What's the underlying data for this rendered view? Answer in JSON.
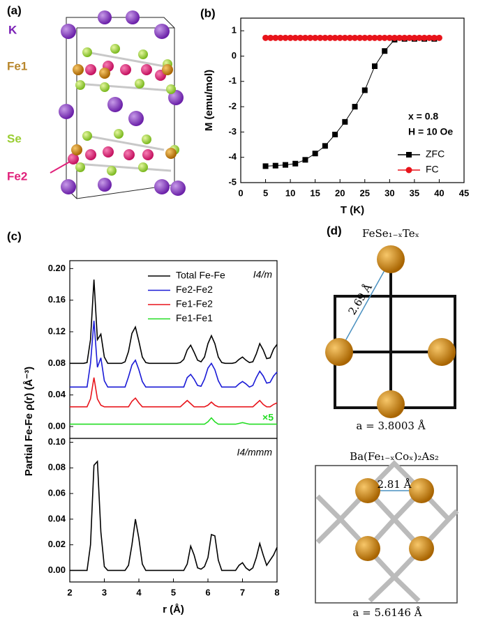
{
  "panel_a": {
    "label": "(a)",
    "atoms": [
      "K",
      "Fe1",
      "Se",
      "Fe2"
    ]
  },
  "panel_d": {
    "label": "(d)",
    "top": {
      "formula": "FeSe₁₋ₓTeₓ",
      "distance": "2.69 Å",
      "lattice": "a = 3.8003 Å"
    },
    "bottom": {
      "formula": "Ba(Fe₁₋ₓCoₓ)₂As₂",
      "distance": "2.81 Å",
      "lattice": "a = 5.6146 Å"
    }
  },
  "chart_data": [
    {
      "type": "line",
      "panel": "(b)",
      "xlabel": "T (K)",
      "ylabel": "M (emu/mol)",
      "xlim": [
        0,
        45
      ],
      "xticks": [
        0,
        5,
        10,
        15,
        20,
        25,
        30,
        35,
        40,
        45
      ],
      "ylim": [
        -5,
        1.5
      ],
      "yticks": [
        -5,
        -4,
        -3,
        -2,
        -1,
        0,
        1
      ],
      "annotations": [
        "x = 0.8",
        "H = 10 Oe"
      ],
      "legend": "lower right",
      "series": [
        {
          "name": "ZFC",
          "color": "#000000",
          "marker": "square",
          "x": [
            5,
            7,
            9,
            11,
            13,
            15,
            17,
            19,
            21,
            23,
            25,
            27,
            29,
            31,
            33,
            35,
            37,
            39
          ],
          "values": [
            -4.35,
            -4.33,
            -4.3,
            -4.25,
            -4.1,
            -3.85,
            -3.55,
            -3.1,
            -2.6,
            -2.0,
            -1.35,
            -0.4,
            0.2,
            0.65,
            0.68,
            0.68,
            0.68,
            0.68
          ]
        },
        {
          "name": "FC",
          "color": "#e8141b",
          "marker": "circle",
          "x": [
            5,
            6,
            7,
            8,
            9,
            10,
            11,
            12,
            13,
            14,
            15,
            16,
            17,
            18,
            19,
            20,
            21,
            22,
            23,
            24,
            25,
            26,
            27,
            28,
            29,
            30,
            31,
            32,
            33,
            34,
            35,
            36,
            37,
            38,
            39,
            40
          ],
          "values": [
            0.72,
            0.72,
            0.72,
            0.72,
            0.72,
            0.72,
            0.72,
            0.72,
            0.72,
            0.72,
            0.72,
            0.72,
            0.72,
            0.72,
            0.72,
            0.72,
            0.72,
            0.72,
            0.72,
            0.72,
            0.72,
            0.72,
            0.72,
            0.72,
            0.72,
            0.72,
            0.72,
            0.72,
            0.72,
            0.72,
            0.72,
            0.72,
            0.72,
            0.72,
            0.72,
            0.72
          ]
        }
      ]
    },
    {
      "type": "line",
      "panel": "(c)",
      "ylabel": "Partial Fe-Fe ρ(r) (Å⁻³)",
      "xlim": [
        2,
        8
      ],
      "ylim": [
        -0.015,
        0.21
      ],
      "yticks": [
        {
          "value": 0,
          "label": "0.00"
        },
        0.04,
        0.08,
        0.12,
        0.16,
        {
          "value": 0.2,
          "label": "0.20"
        }
      ],
      "annotations": [
        "I4/m",
        "×5"
      ],
      "legend": "upper right",
      "x": [
        2.0,
        2.1,
        2.2,
        2.3,
        2.4,
        2.5,
        2.6,
        2.7,
        2.8,
        2.9,
        3.0,
        3.1,
        3.2,
        3.3,
        3.4,
        3.5,
        3.6,
        3.7,
        3.8,
        3.9,
        4.0,
        4.1,
        4.2,
        4.3,
        4.4,
        4.5,
        4.6,
        4.7,
        4.8,
        4.9,
        5.0,
        5.1,
        5.2,
        5.3,
        5.4,
        5.5,
        5.6,
        5.7,
        5.8,
        5.9,
        6.0,
        6.1,
        6.2,
        6.3,
        6.4,
        6.5,
        6.6,
        6.7,
        6.8,
        6.9,
        7.0,
        7.1,
        7.2,
        7.3,
        7.4,
        7.5,
        7.6,
        7.7,
        7.8,
        7.9,
        8.0
      ],
      "series": [
        {
          "name": "Total Fe-Fe",
          "color": "#000000",
          "values": [
            0.08,
            0.08,
            0.08,
            0.08,
            0.08,
            0.081,
            0.11,
            0.186,
            0.11,
            0.117,
            0.088,
            0.08,
            0.08,
            0.08,
            0.08,
            0.08,
            0.082,
            0.095,
            0.118,
            0.126,
            0.108,
            0.088,
            0.081,
            0.08,
            0.08,
            0.08,
            0.08,
            0.08,
            0.08,
            0.08,
            0.08,
            0.08,
            0.081,
            0.085,
            0.097,
            0.103,
            0.094,
            0.084,
            0.082,
            0.088,
            0.105,
            0.115,
            0.105,
            0.088,
            0.081,
            0.08,
            0.08,
            0.08,
            0.081,
            0.085,
            0.088,
            0.084,
            0.081,
            0.082,
            0.092,
            0.105,
            0.097,
            0.086,
            0.087,
            0.098,
            0.104
          ]
        },
        {
          "name": "Fe2-Fe2",
          "color": "#1a1ad6",
          "values": [
            0.05,
            0.05,
            0.05,
            0.05,
            0.05,
            0.05,
            0.08,
            0.134,
            0.075,
            0.087,
            0.058,
            0.05,
            0.05,
            0.05,
            0.05,
            0.05,
            0.05,
            0.063,
            0.078,
            0.084,
            0.072,
            0.057,
            0.05,
            0.05,
            0.05,
            0.05,
            0.05,
            0.05,
            0.05,
            0.05,
            0.05,
            0.05,
            0.05,
            0.05,
            0.062,
            0.066,
            0.06,
            0.052,
            0.051,
            0.06,
            0.074,
            0.08,
            0.072,
            0.058,
            0.05,
            0.05,
            0.05,
            0.05,
            0.05,
            0.054,
            0.057,
            0.054,
            0.05,
            0.052,
            0.062,
            0.07,
            0.064,
            0.055,
            0.056,
            0.064,
            0.069
          ]
        },
        {
          "name": "Fe1-Fe2",
          "color": "#e8141b",
          "values": [
            0.025,
            0.025,
            0.025,
            0.025,
            0.025,
            0.025,
            0.035,
            0.062,
            0.035,
            0.027,
            0.025,
            0.025,
            0.025,
            0.025,
            0.025,
            0.025,
            0.025,
            0.025,
            0.032,
            0.036,
            0.03,
            0.025,
            0.025,
            0.025,
            0.025,
            0.025,
            0.025,
            0.025,
            0.025,
            0.025,
            0.025,
            0.025,
            0.025,
            0.029,
            0.033,
            0.029,
            0.025,
            0.025,
            0.025,
            0.025,
            0.027,
            0.031,
            0.027,
            0.025,
            0.025,
            0.025,
            0.025,
            0.025,
            0.025,
            0.025,
            0.025,
            0.025,
            0.025,
            0.025,
            0.029,
            0.033,
            0.028,
            0.025,
            0.025,
            0.028,
            0.03
          ]
        },
        {
          "name": "Fe1-Fe1",
          "color": "#22dd22",
          "values": [
            0.003,
            0.003,
            0.003,
            0.003,
            0.003,
            0.003,
            0.003,
            0.003,
            0.003,
            0.003,
            0.003,
            0.003,
            0.003,
            0.003,
            0.003,
            0.003,
            0.003,
            0.003,
            0.003,
            0.003,
            0.003,
            0.003,
            0.003,
            0.003,
            0.003,
            0.003,
            0.003,
            0.003,
            0.003,
            0.003,
            0.003,
            0.003,
            0.003,
            0.003,
            0.003,
            0.003,
            0.003,
            0.003,
            0.003,
            0.003,
            0.006,
            0.011,
            0.006,
            0.003,
            0.003,
            0.003,
            0.003,
            0.003,
            0.003,
            0.004,
            0.005,
            0.004,
            0.003,
            0.003,
            0.003,
            0.003,
            0.003,
            0.003,
            0.003,
            0.003,
            0.003
          ]
        }
      ]
    },
    {
      "type": "line",
      "xlabel": "r (Å)",
      "xlim": [
        2,
        8
      ],
      "xticks": [
        2,
        3,
        4,
        5,
        6,
        7,
        8
      ],
      "ylim": [
        -0.009,
        0.103
      ],
      "yticks": [
        {
          "value": 0,
          "label": "0.00"
        },
        0.02,
        0.04,
        0.06,
        0.08,
        {
          "value": 0.1,
          "label": "0.10"
        }
      ],
      "annotations": [
        "I4/mmm"
      ],
      "x": [
        2.0,
        2.1,
        2.2,
        2.3,
        2.4,
        2.5,
        2.6,
        2.7,
        2.8,
        2.9,
        3.0,
        3.1,
        3.2,
        3.3,
        3.4,
        3.5,
        3.6,
        3.7,
        3.8,
        3.9,
        4.0,
        4.1,
        4.2,
        4.3,
        4.4,
        4.5,
        4.6,
        4.7,
        4.8,
        4.9,
        5.0,
        5.1,
        5.2,
        5.3,
        5.4,
        5.5,
        5.6,
        5.7,
        5.8,
        5.9,
        6.0,
        6.1,
        6.2,
        6.3,
        6.4,
        6.5,
        6.6,
        6.7,
        6.8,
        6.9,
        7.0,
        7.1,
        7.2,
        7.3,
        7.4,
        7.5,
        7.6,
        7.7,
        7.8,
        7.9,
        8.0
      ],
      "series": [
        {
          "color": "#000000",
          "values": [
            0,
            0,
            0,
            0,
            0,
            0,
            0.02,
            0.082,
            0.085,
            0.03,
            0.003,
            0,
            0,
            0,
            0,
            0,
            0,
            0.004,
            0.02,
            0.04,
            0.025,
            0.005,
            0,
            0,
            0,
            0,
            0,
            0,
            0,
            0,
            0,
            0,
            0,
            0,
            0.005,
            0.019,
            0.012,
            0.002,
            0.001,
            0.003,
            0.01,
            0.028,
            0.027,
            0.008,
            0,
            0,
            0,
            0,
            0,
            0.004,
            0.006,
            0.002,
            0,
            0.002,
            0.01,
            0.021,
            0.012,
            0.004,
            0.008,
            0.012,
            0.018
          ]
        }
      ]
    }
  ]
}
